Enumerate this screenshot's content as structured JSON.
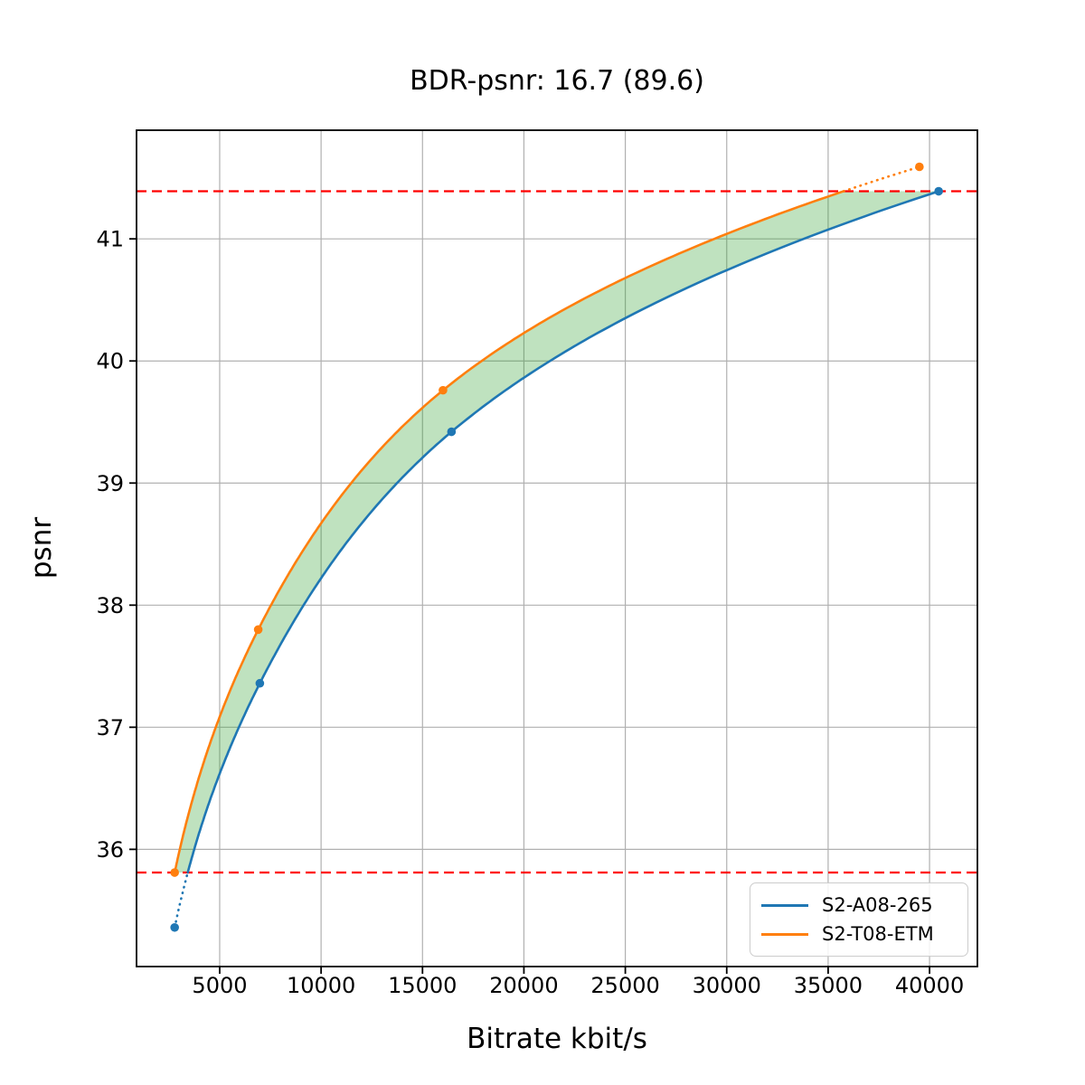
{
  "chart_data": {
    "type": "line",
    "title": "BDR-psnr: 16.7 (89.6)",
    "xlabel": "Bitrate kbit/s",
    "ylabel": "psnr",
    "xlim": [
      900,
      42360
    ],
    "ylim": [
      35.04,
      41.89
    ],
    "x_ticks": [
      5000,
      10000,
      15000,
      20000,
      25000,
      30000,
      35000,
      40000
    ],
    "y_ticks": [
      36,
      37,
      38,
      39,
      40,
      41
    ],
    "grid": true,
    "grid_color": "#b0b0b0",
    "legend_position": "lower right",
    "series": [
      {
        "name": "S2-A08-265",
        "color": "#1f77b4",
        "points": [
          [
            2780,
            35.36
          ],
          [
            6980,
            37.36
          ],
          [
            16430,
            39.42
          ],
          [
            40450,
            41.39
          ]
        ]
      },
      {
        "name": "S2-T08-ETM",
        "color": "#ff7f0e",
        "points": [
          [
            2780,
            35.81
          ],
          [
            6900,
            37.8
          ],
          [
            16010,
            39.76
          ],
          [
            39500,
            41.59
          ]
        ]
      }
    ],
    "ref_lines": {
      "color": "#ff0000",
      "lower": 35.81,
      "upper": 41.39,
      "style": "dashed"
    },
    "fill_between": {
      "color": "#2ca02c",
      "alpha": 0.3
    }
  }
}
